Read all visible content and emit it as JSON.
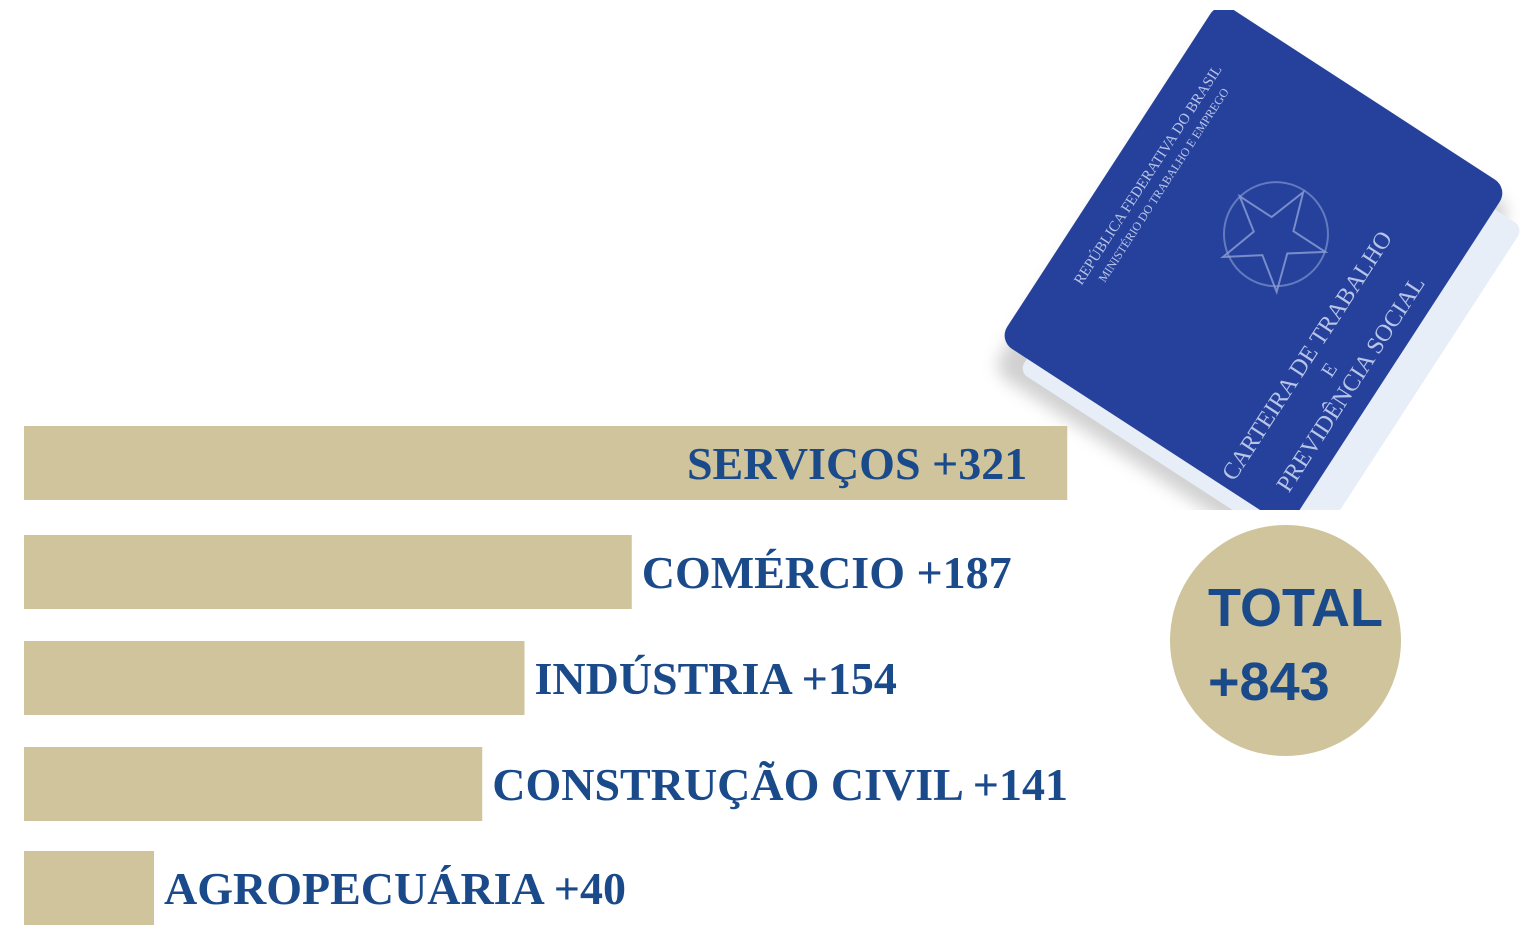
{
  "colors": {
    "bar": "#cfc49b",
    "text": "#1b4a8b",
    "passport": "#24409a"
  },
  "passport": {
    "line1": "REPÚBLICA FEDERATIVA DO BRASIL",
    "line2": "MINISTÉRIO DO TRABALHO E EMPREGO",
    "title1": "CARTEIRA DE TRABALHO",
    "title2": "E",
    "title3": "PREVIDÊNCIA SOCIAL"
  },
  "total": {
    "label": "TOTAL",
    "value": "+843"
  },
  "chart_data": {
    "type": "bar",
    "orientation": "horizontal",
    "categories": [
      "SERVIÇOS",
      "COMÉRCIO",
      "INDÚSTRIA",
      "CONSTRUÇÃO CIVIL",
      "AGROPECUÁRIA"
    ],
    "values": [
      321,
      187,
      154,
      141,
      40
    ],
    "labels": [
      "SERVIÇOS +321",
      "COMÉRCIO +187",
      "INDÚSTRIA +154",
      "CONSTRUÇÃO CIVIL +141",
      "AGROPECUÁRIA +40"
    ],
    "grid": false,
    "axes": false
  }
}
